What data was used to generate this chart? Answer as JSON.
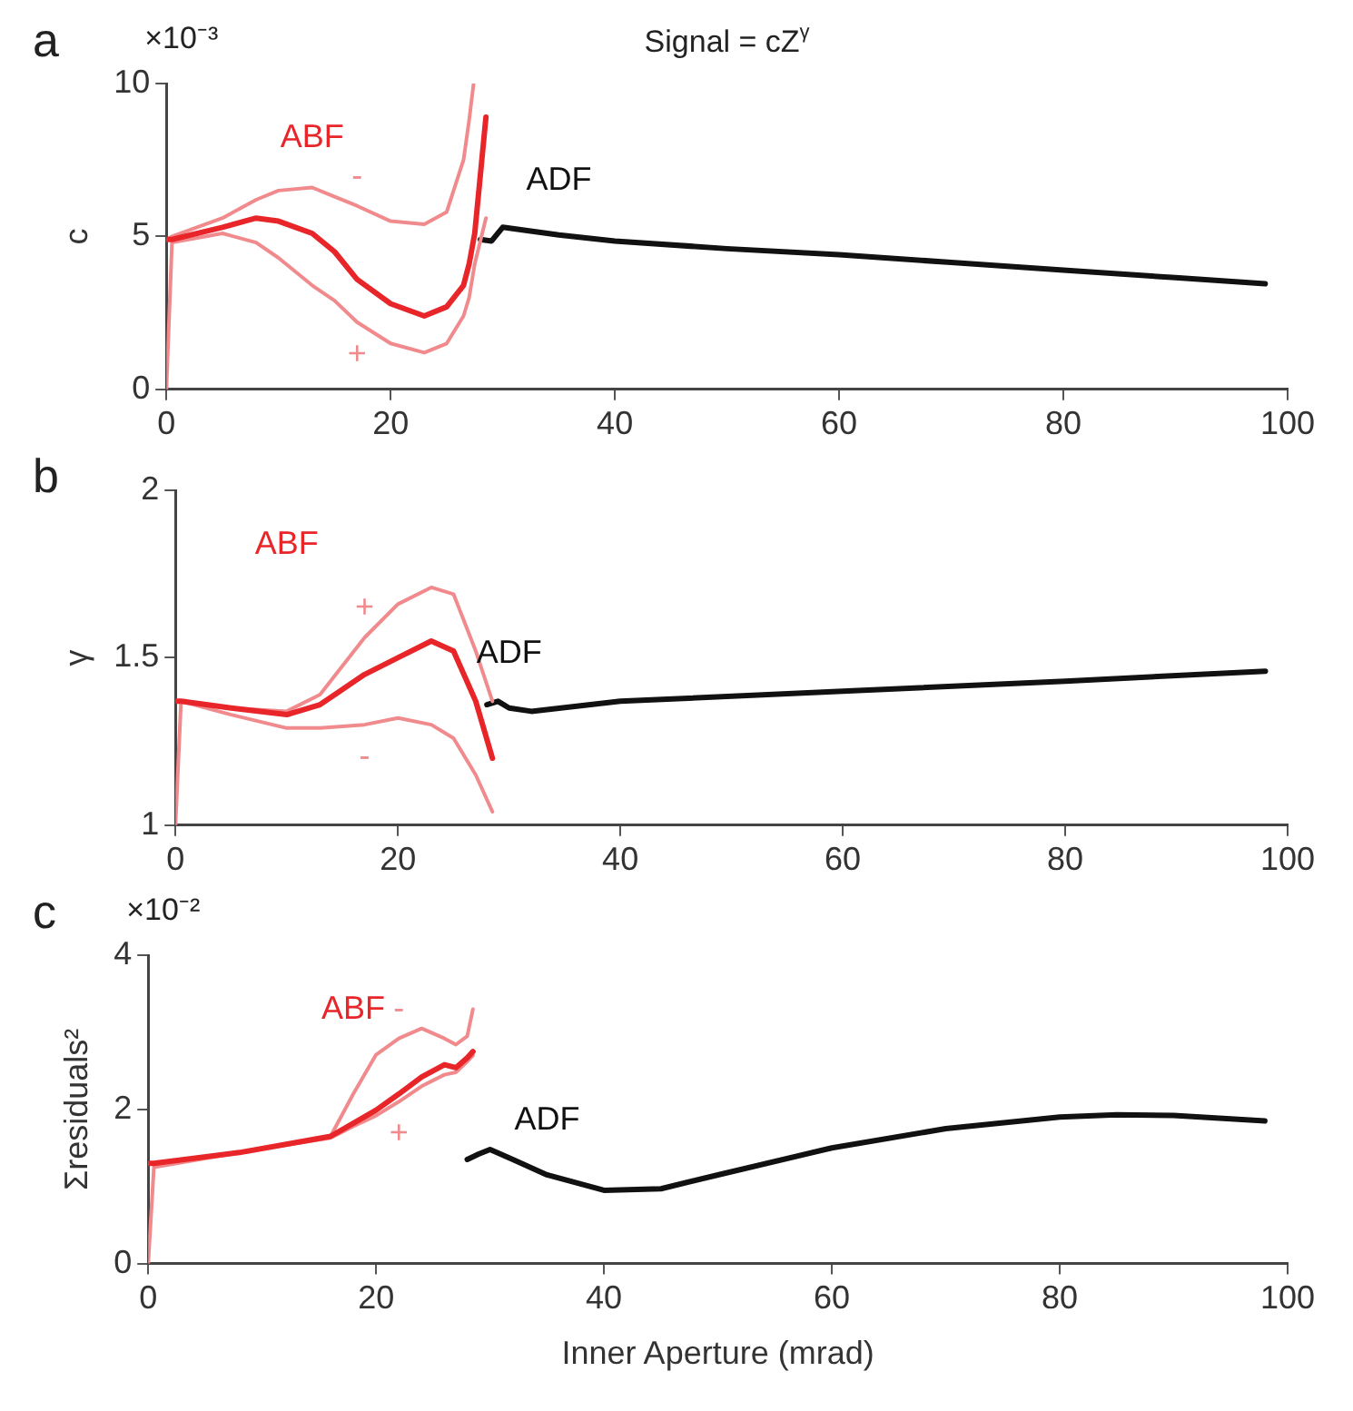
{
  "chart_data": [
    {
      "type": "line",
      "title": "Signal = cZ$^{γ}$",
      "ylabel": "c",
      "xlim": [
        0,
        100
      ],
      "xticks": [
        0,
        20,
        40,
        60,
        80,
        100
      ],
      "ylim": [
        0,
        10
      ],
      "yticks": [
        0,
        5,
        10
      ],
      "grid": false,
      "legend": false,
      "series": [
        {
          "name": "ABF",
          "color": "#e8262a",
          "x": [
            0,
            0.5,
            5,
            8,
            10,
            13,
            15,
            17,
            20,
            23,
            25,
            26.5,
            27,
            27.5,
            28.5
          ],
          "values": [
            4.9,
            4.9,
            5.3,
            5.6,
            5.5,
            5.1,
            4.5,
            3.6,
            2.8,
            2.4,
            2.7,
            3.4,
            4.1,
            5.1,
            8.9
          ]
        },
        {
          "name": "-",
          "color": "#f08a8d",
          "x": [
            0,
            0.5,
            5,
            8,
            10,
            13,
            15,
            17,
            20,
            23,
            25,
            26.5,
            27,
            27.4
          ],
          "values": [
            4.9,
            5.0,
            5.6,
            6.2,
            6.5,
            6.6,
            6.3,
            6.0,
            5.5,
            5.4,
            5.8,
            7.5,
            8.8,
            10
          ]
        },
        {
          "name": "+",
          "color": "#f08a8d",
          "x": [
            0,
            0.5,
            5,
            8,
            10,
            13,
            15,
            17,
            20,
            23,
            25,
            26.5,
            27,
            27.5,
            28.5
          ],
          "values": [
            0,
            4.8,
            5.1,
            4.8,
            4.3,
            3.4,
            2.9,
            2.2,
            1.5,
            1.2,
            1.5,
            2.4,
            3.0,
            4.1,
            5.6
          ]
        },
        {
          "name": "ADF",
          "color": "#111111",
          "x": [
            28,
            29,
            30,
            35,
            40,
            50,
            60,
            70,
            80,
            90,
            98
          ],
          "values": [
            4.9,
            4.85,
            5.3,
            5.05,
            4.85,
            4.6,
            4.4,
            4.15,
            3.9,
            3.65,
            3.45
          ]
        }
      ],
      "annotations": [
        "a",
        "×10⁻³"
      ]
    },
    {
      "type": "line",
      "ylabel": "γ",
      "xlim": [
        0,
        100
      ],
      "xticks": [
        0,
        20,
        40,
        60,
        80,
        100
      ],
      "ylim": [
        1,
        2
      ],
      "yticks": [
        1,
        1.5,
        2
      ],
      "grid": false,
      "legend": false,
      "series": [
        {
          "name": "ABF",
          "color": "#e8262a",
          "x": [
            0,
            0.5,
            5,
            10,
            13,
            17,
            20,
            23,
            25,
            27,
            28.5
          ],
          "values": [
            1.37,
            1.37,
            1.35,
            1.33,
            1.36,
            1.45,
            1.5,
            1.55,
            1.52,
            1.37,
            1.2
          ]
        },
        {
          "name": "+",
          "color": "#f08a8d",
          "x": [
            0,
            0.5,
            5,
            10,
            13,
            17,
            20,
            23,
            25,
            27,
            28.5
          ],
          "values": [
            1.37,
            1.37,
            1.35,
            1.34,
            1.39,
            1.56,
            1.66,
            1.71,
            1.69,
            1.52,
            1.37
          ]
        },
        {
          "name": "-",
          "color": "#f08a8d",
          "x": [
            0,
            0.5,
            5,
            10,
            13,
            17,
            20,
            23,
            25,
            27,
            28.5
          ],
          "values": [
            1.0,
            1.37,
            1.33,
            1.29,
            1.29,
            1.3,
            1.32,
            1.3,
            1.26,
            1.15,
            1.04
          ]
        },
        {
          "name": "ADF",
          "color": "#111111",
          "x": [
            28,
            29,
            30,
            32,
            40,
            60,
            80,
            98
          ],
          "values": [
            1.36,
            1.37,
            1.35,
            1.34,
            1.37,
            1.4,
            1.43,
            1.46
          ]
        }
      ],
      "annotations": [
        "b"
      ]
    },
    {
      "type": "line",
      "ylabel": "Σresiduals²",
      "xlabel": "Inner Aperture (mrad)",
      "xlim": [
        0,
        100
      ],
      "xticks": [
        0,
        20,
        40,
        60,
        80,
        100
      ],
      "ylim": [
        0,
        4
      ],
      "yticks": [
        0,
        2,
        4
      ],
      "grid": false,
      "legend": false,
      "series": [
        {
          "name": "ABF",
          "color": "#e8262a",
          "x": [
            0,
            0.5,
            8,
            16,
            18,
            20,
            22,
            24,
            26,
            27,
            28,
            28.5
          ],
          "values": [
            1.3,
            1.3,
            1.44,
            1.65,
            1.82,
            1.99,
            2.2,
            2.42,
            2.58,
            2.54,
            2.67,
            2.75
          ]
        },
        {
          "name": "-",
          "color": "#f08a8d",
          "x": [
            0,
            0.5,
            8,
            16,
            18,
            20,
            22,
            24,
            26,
            27,
            28,
            28.5
          ],
          "values": [
            1.3,
            1.3,
            1.44,
            1.65,
            2.2,
            2.71,
            2.92,
            3.05,
            2.92,
            2.84,
            2.95,
            3.3
          ]
        },
        {
          "name": "+",
          "color": "#f08a8d",
          "x": [
            0,
            0.5,
            8,
            16,
            18,
            20,
            22,
            24,
            26,
            27,
            28,
            28.5
          ],
          "values": [
            0,
            1.25,
            1.44,
            1.63,
            1.78,
            1.92,
            2.1,
            2.3,
            2.45,
            2.48,
            2.62,
            2.7
          ]
        },
        {
          "name": "ADF",
          "color": "#111111",
          "x": [
            28,
            29,
            30,
            32,
            35,
            40,
            45,
            50,
            60,
            70,
            80,
            85,
            90,
            98
          ],
          "values": [
            1.35,
            1.42,
            1.48,
            1.35,
            1.15,
            0.95,
            0.97,
            1.15,
            1.5,
            1.75,
            1.9,
            1.93,
            1.92,
            1.85
          ]
        }
      ],
      "annotations": [
        "c",
        "×10⁻²"
      ]
    }
  ]
}
